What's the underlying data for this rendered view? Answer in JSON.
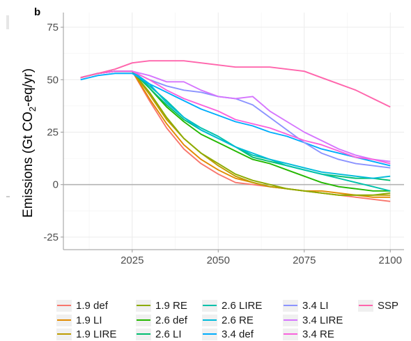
{
  "chart_data": {
    "type": "line",
    "panel_label": "b",
    "ylabel": "Emissions (Gt CO2-eq/yr)",
    "ylabel_parts": [
      "Emissions (Gt CO",
      "2",
      "-eq/yr)"
    ],
    "xlabel": "",
    "xlim": [
      2005,
      2104
    ],
    "ylim": [
      -31,
      82
    ],
    "x_ticks": [
      2025,
      2050,
      2075,
      2100
    ],
    "y_ticks": [
      -25,
      0,
      25,
      50,
      75
    ],
    "grid": true,
    "legend_placement": "bottom",
    "x": [
      2010,
      2015,
      2020,
      2025,
      2030,
      2035,
      2040,
      2045,
      2050,
      2055,
      2060,
      2065,
      2070,
      2075,
      2080,
      2085,
      2090,
      2095,
      2100
    ],
    "series": [
      {
        "name": "1.9 def",
        "color": "#F8766D",
        "values": [
          51,
          53,
          54,
          54,
          40,
          27,
          17,
          10,
          5,
          1,
          0,
          -1,
          -2,
          -3,
          -4,
          -5,
          -6,
          -7,
          -8
        ]
      },
      {
        "name": "1.9 LI",
        "color": "#E18A00",
        "values": [
          51,
          53,
          54,
          54,
          41,
          29,
          19,
          12,
          7,
          3,
          1,
          -1,
          -2,
          -3,
          -3,
          -4,
          -5,
          -6,
          -6
        ]
      },
      {
        "name": "1.9 LIRE",
        "color": "#BE9C00",
        "values": [
          51,
          53,
          54,
          54,
          43,
          31,
          22,
          15,
          9,
          4,
          1,
          -1,
          -2,
          -3,
          -4,
          -5,
          -5,
          -5,
          -5
        ]
      },
      {
        "name": "1.9 RE",
        "color": "#8CAB00",
        "values": [
          51,
          53,
          54,
          54,
          44,
          32,
          22,
          15,
          10,
          5,
          2,
          0,
          -2,
          -3,
          -4,
          -5,
          -5,
          -5,
          -4
        ]
      },
      {
        "name": "2.6 def",
        "color": "#24B700",
        "values": [
          51,
          53,
          54,
          54,
          46,
          37,
          30,
          24,
          20,
          16,
          12,
          10,
          7,
          4,
          1,
          -1,
          -2,
          -3,
          -3
        ]
      },
      {
        "name": "2.6 LI",
        "color": "#00BE70",
        "values": [
          51,
          53,
          54,
          54,
          46,
          38,
          31,
          26,
          22,
          18,
          13,
          11,
          9,
          7,
          5,
          4,
          3,
          3,
          2
        ]
      },
      {
        "name": "2.6 LIRE",
        "color": "#00C1AB",
        "values": [
          51,
          53,
          54,
          54,
          47,
          40,
          32,
          27,
          23,
          18,
          14,
          12,
          9,
          7,
          5,
          3,
          1,
          -1,
          -3
        ]
      },
      {
        "name": "2.6 RE",
        "color": "#00BBDA",
        "values": [
          51,
          53,
          54,
          54,
          48,
          39,
          32,
          26,
          22,
          18,
          15,
          12,
          10,
          8,
          6,
          5,
          4,
          3,
          4
        ]
      },
      {
        "name": "3.4 def",
        "color": "#00ACFC",
        "values": [
          50,
          52,
          53,
          53,
          48,
          44,
          40,
          36,
          33,
          30,
          28,
          25,
          23,
          20,
          17,
          15,
          13,
          11,
          9
        ]
      },
      {
        "name": "3.4 LI",
        "color": "#8B93FF",
        "values": [
          51,
          53,
          54,
          54,
          50,
          47,
          45,
          44,
          42,
          41,
          38,
          32,
          26,
          20,
          15,
          12,
          10,
          9,
          8
        ]
      },
      {
        "name": "3.4 LIRE",
        "color": "#D575FE",
        "values": [
          51,
          53,
          54,
          54,
          52,
          49,
          49,
          45,
          42,
          41,
          42,
          35,
          30,
          25,
          21,
          17,
          14,
          12,
          11
        ]
      },
      {
        "name": "3.4 RE",
        "color": "#F962DD",
        "values": [
          51,
          53,
          54,
          54,
          50,
          45,
          41,
          38,
          35,
          31,
          29,
          27,
          24,
          21,
          19,
          16,
          13,
          12,
          10
        ]
      },
      {
        "name": "SSP",
        "color": "#FF65AC",
        "values": [
          51,
          53,
          55,
          58,
          59,
          59,
          59,
          58,
          57,
          56,
          56,
          56,
          55,
          54,
          51,
          48,
          45,
          41,
          37
        ]
      }
    ],
    "legend_columns": 6
  }
}
